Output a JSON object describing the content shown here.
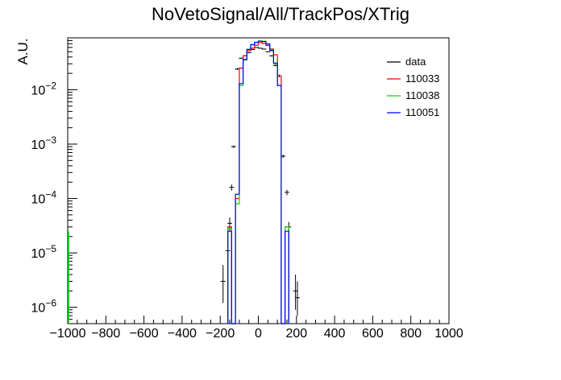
{
  "chart_data": {
    "type": "histogram",
    "title": "NoVetoSignal/All/TrackPos/XTrig",
    "xlabel": "",
    "ylabel": "A.U.",
    "xlim": [
      -1000,
      1000
    ],
    "ylim": [
      5e-07,
      0.09
    ],
    "yscale": "log",
    "legend_position": "top-right",
    "x_ticks": [
      "−1000",
      "−800",
      "−600",
      "−400",
      "−200",
      "0",
      "200",
      "400",
      "600",
      "800",
      "1000"
    ],
    "y_ticks": [
      {
        "base": "10",
        "exp": "−6",
        "value": 1e-06
      },
      {
        "base": "10",
        "exp": "−5",
        "value": 1e-05
      },
      {
        "base": "10",
        "exp": "−4",
        "value": 0.0001
      },
      {
        "base": "10",
        "exp": "−3",
        "value": 0.001
      },
      {
        "base": "10",
        "exp": "−2",
        "value": 0.01
      }
    ],
    "bin_edges": [
      -120,
      -100,
      -80,
      -60,
      -40,
      -20,
      0,
      20,
      40,
      60,
      80,
      100,
      120
    ],
    "series": [
      {
        "name": "data",
        "color": "#000000",
        "style": "points",
        "points": [
          {
            "x": -185,
            "y": 3e-06,
            "lo": 1.2e-06,
            "hi": 6e-06
          },
          {
            "x": -160,
            "y": 1.1e-05,
            "lo": 7e-06,
            "hi": 1.6e-05
          },
          {
            "x": -150,
            "y": 3.5e-05,
            "lo": 2.5e-05,
            "hi": 4.5e-05
          },
          {
            "x": -140,
            "y": 0.00016,
            "lo": 0.00014,
            "hi": 0.00018
          },
          {
            "x": -130,
            "y": 0.0009,
            "lo": 0.00085,
            "hi": 0.00095
          },
          {
            "x": -110,
            "y": 0.024,
            "lo": 0.023,
            "hi": 0.025
          },
          {
            "x": -90,
            "y": 0.038,
            "lo": 0.037,
            "hi": 0.039
          },
          {
            "x": -70,
            "y": 0.042,
            "lo": 0.041,
            "hi": 0.043
          },
          {
            "x": -50,
            "y": 0.048,
            "lo": 0.047,
            "hi": 0.049
          },
          {
            "x": -30,
            "y": 0.055,
            "lo": 0.054,
            "hi": 0.056
          },
          {
            "x": -10,
            "y": 0.06,
            "lo": 0.059,
            "hi": 0.061
          },
          {
            "x": 10,
            "y": 0.058,
            "lo": 0.057,
            "hi": 0.059
          },
          {
            "x": 30,
            "y": 0.056,
            "lo": 0.055,
            "hi": 0.057
          },
          {
            "x": 50,
            "y": 0.05,
            "lo": 0.049,
            "hi": 0.051
          },
          {
            "x": 70,
            "y": 0.042,
            "lo": 0.041,
            "hi": 0.043
          },
          {
            "x": 90,
            "y": 0.028,
            "lo": 0.027,
            "hi": 0.029
          },
          {
            "x": 110,
            "y": 0.018,
            "lo": 0.017,
            "hi": 0.019
          },
          {
            "x": 130,
            "y": 0.0006,
            "lo": 0.00056,
            "hi": 0.00064
          },
          {
            "x": 150,
            "y": 0.00013,
            "lo": 0.000115,
            "hi": 0.000145
          },
          {
            "x": 160,
            "y": 3e-05,
            "lo": 2.3e-05,
            "hi": 3.7e-05
          },
          {
            "x": 195,
            "y": 2e-06,
            "lo": 9e-07,
            "hi": 4e-06
          },
          {
            "x": 205,
            "y": 1.5e-06,
            "lo": 7e-07,
            "hi": 3e-06
          }
        ]
      },
      {
        "name": "110033",
        "color": "#ff0000",
        "style": "step",
        "values": [
          0.0001,
          0.025,
          0.042,
          0.052,
          0.058,
          0.066,
          0.074,
          0.071,
          0.065,
          0.056,
          0.044,
          0.018
        ],
        "outer_tail": {
          "left": 3e-05,
          "right": 3e-05
        }
      },
      {
        "name": "110038",
        "color": "#00dd00",
        "style": "step",
        "values": [
          8e-05,
          0.012,
          0.035,
          0.055,
          0.068,
          0.075,
          0.079,
          0.078,
          0.07,
          0.052,
          0.03,
          0.012
        ],
        "outer_tail": {
          "left": 2.8e-05,
          "right": 3e-05
        },
        "edge_spike": {
          "x": -1000,
          "y": 2.5e-05
        }
      },
      {
        "name": "110051",
        "color": "#0000ff",
        "style": "step",
        "values": [
          0.00012,
          0.013,
          0.036,
          0.055,
          0.067,
          0.074,
          0.078,
          0.077,
          0.069,
          0.053,
          0.031,
          0.012
        ],
        "outer_tail": {
          "left": 2.5e-05,
          "right": 2.5e-05
        }
      }
    ]
  }
}
